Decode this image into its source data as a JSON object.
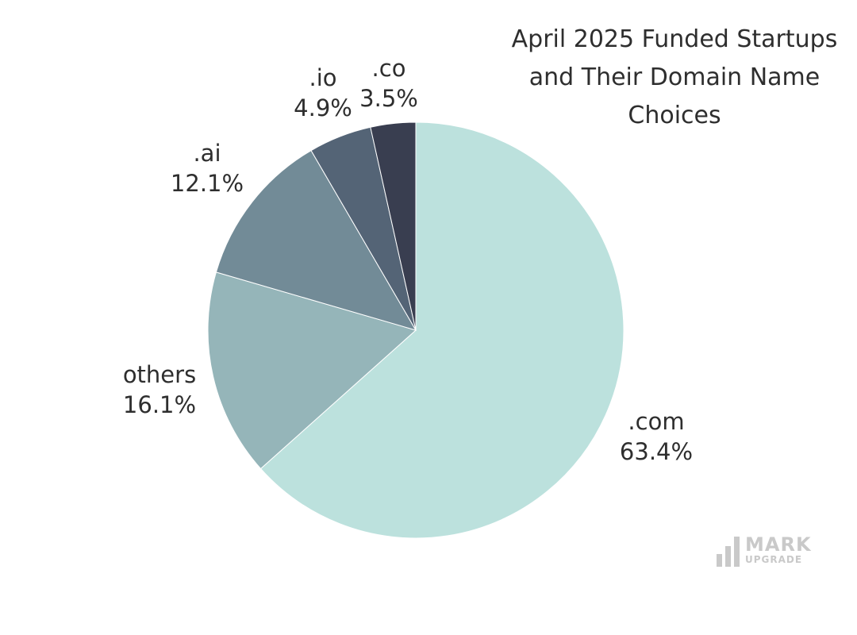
{
  "chart_data": {
    "type": "pie",
    "title": "April 2025 Funded Startups and Their Domain Name Choices",
    "slices": [
      {
        "label": ".com",
        "value": 63.4,
        "value_label": "63.4%",
        "color": "#bce1dd"
      },
      {
        "label": "others",
        "value": 16.1,
        "value_label": "16.1%",
        "color": "#95b5b9"
      },
      {
        "label": ".ai",
        "value": 12.1,
        "value_label": "12.1%",
        "color": "#728b97"
      },
      {
        "label": ".io",
        "value": 4.9,
        "value_label": "4.9%",
        "color": "#546476"
      },
      {
        "label": ".co",
        "value": 3.5,
        "value_label": "3.5%",
        "color": "#393e50"
      }
    ],
    "start": "12 o'clock",
    "direction": "clockwise"
  },
  "title_lines": [
    "April 2025 Funded Startups",
    "and Their Domain Name",
    "Choices"
  ],
  "watermark": {
    "word1": "MARK",
    "word2": "UPGRADE"
  }
}
